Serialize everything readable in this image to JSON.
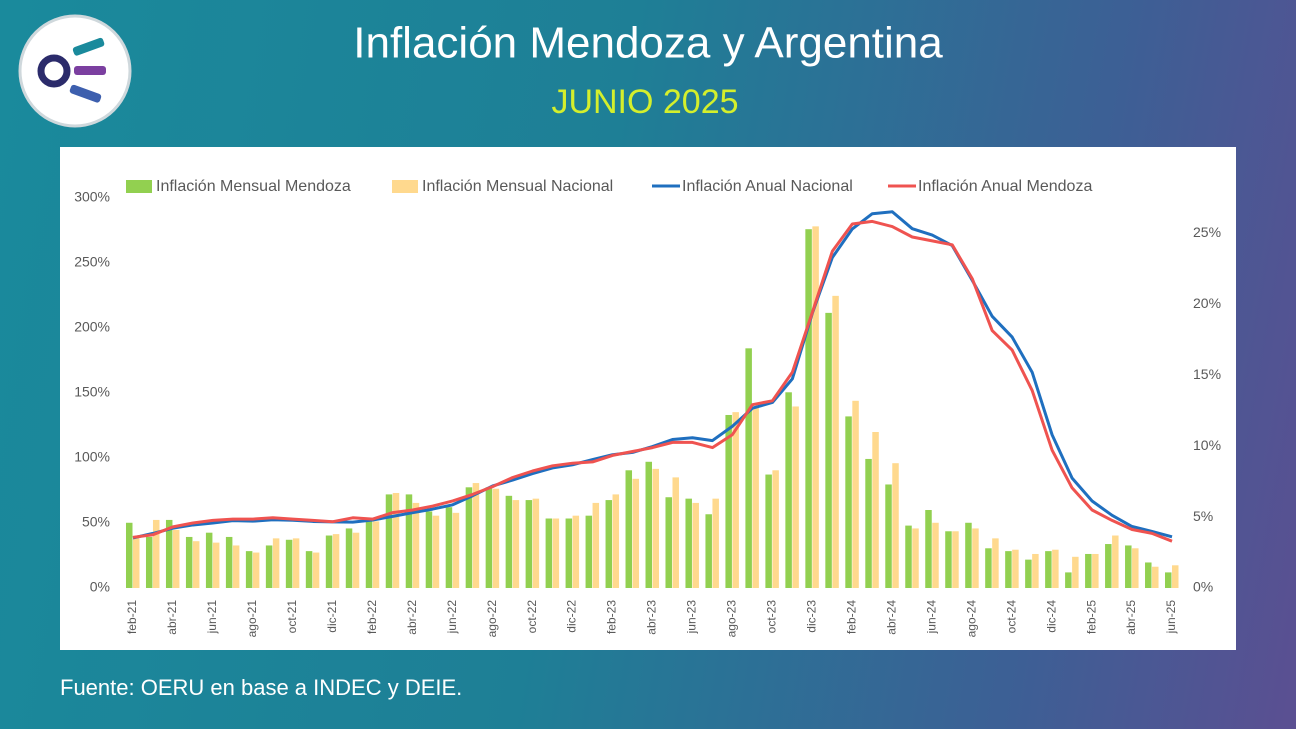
{
  "header": {
    "title": "Inflación Mendoza y Argentina",
    "subtitle": "JUNIO 2025"
  },
  "footer": {
    "source": "Fuente: OERU en base a INDEC y DEIE."
  },
  "chart_data": {
    "type": "bar-line",
    "categories": [
      "feb-21",
      null,
      "abr-21",
      null,
      "jun-21",
      null,
      "ago-21",
      null,
      "oct-21",
      null,
      "dic-21",
      null,
      "feb-22",
      null,
      "abr-22",
      null,
      "jun-22",
      null,
      "ago-22",
      null,
      "oct-22",
      null,
      "dic-22",
      null,
      "feb-23",
      null,
      "abr-23",
      null,
      "jun-23",
      null,
      "ago-23",
      null,
      "oct-23",
      null,
      "dic-23",
      null,
      "feb-24",
      null,
      "abr-24",
      null,
      "jun-24",
      null,
      "ago-24",
      null,
      "oct-24",
      null,
      "dic-24",
      null,
      "feb-25",
      null,
      "abr-25",
      null,
      "jun-25"
    ],
    "series": [
      {
        "name": "Inflación Mensual Mendoza",
        "kind": "bar",
        "axis": "y2",
        "color": "#92d050",
        "values": [
          4.6,
          3.6,
          4.8,
          3.6,
          3.9,
          3.6,
          2.6,
          3.0,
          3.4,
          2.6,
          3.7,
          4.2,
          4.7,
          6.6,
          6.6,
          5.4,
          5.7,
          7.1,
          7.1,
          6.5,
          6.2,
          4.9,
          4.9,
          5.1,
          6.2,
          8.3,
          8.9,
          6.4,
          6.3,
          5.2,
          12.2,
          16.9,
          8.0,
          13.8,
          25.3,
          19.4,
          12.1,
          9.1,
          7.3,
          4.4,
          5.5,
          4.0,
          4.6,
          2.8,
          2.6,
          2.0,
          2.6,
          1.1,
          2.4,
          3.1,
          3.0,
          1.8,
          1.1
        ]
      },
      {
        "name": "Inflación Mensual Nacional",
        "kind": "bar",
        "axis": "y2",
        "color": "#ffd98e",
        "values": [
          3.6,
          4.8,
          4.1,
          3.3,
          3.2,
          3.0,
          2.5,
          3.5,
          3.5,
          2.5,
          3.8,
          3.9,
          4.7,
          6.7,
          6.0,
          5.1,
          5.3,
          7.4,
          7.0,
          6.2,
          6.3,
          4.9,
          5.1,
          6.0,
          6.6,
          7.7,
          8.4,
          7.8,
          6.0,
          6.3,
          12.4,
          12.7,
          8.3,
          12.8,
          25.5,
          20.6,
          13.2,
          11.0,
          8.8,
          4.2,
          4.6,
          4.0,
          4.2,
          3.5,
          2.7,
          2.4,
          2.7,
          2.2,
          2.4,
          3.7,
          2.8,
          1.5,
          1.6
        ]
      },
      {
        "name": "Inflación Anual Nacional",
        "kind": "line",
        "axis": "y",
        "color": "#1f6fbf",
        "values": [
          38.5,
          42,
          46,
          48.5,
          50,
          51.8,
          51.4,
          52.5,
          52.1,
          51.2,
          50.9,
          50.7,
          52.3,
          55.1,
          58,
          60.7,
          64,
          71,
          78.5,
          83,
          88,
          92.4,
          94.8,
          98.8,
          102.5,
          104.3,
          108.8,
          114.2,
          115.6,
          113.4,
          124.4,
          138.3,
          142.7,
          160.9,
          211.4,
          254.2,
          276.2,
          287.9,
          289.4,
          276.4,
          271.5,
          263.4,
          236.7,
          209,
          193,
          166,
          117.8,
          84.5,
          66.9,
          55.9,
          47.3,
          43.5,
          39.4
        ]
      },
      {
        "name": "Inflación Anual Mendoza",
        "kind": "line",
        "axis": "y",
        "color": "#ef5350",
        "values": [
          39,
          41,
          47,
          50,
          52,
          53,
          53,
          54,
          53,
          52,
          51,
          54,
          53,
          58,
          60,
          63,
          67,
          72,
          78,
          85,
          90,
          94,
          96,
          97,
          102,
          105,
          108,
          112,
          112,
          108,
          118,
          141,
          144,
          166,
          212,
          259,
          280,
          282,
          278,
          270,
          267,
          264,
          238,
          198,
          183,
          152,
          106,
          77,
          60,
          52,
          45,
          42,
          36
        ]
      }
    ],
    "ylim": [
      0,
      300
    ],
    "yticks": [
      {
        "value": 0,
        "label": "0%"
      },
      {
        "value": 50,
        "label": "50%"
      },
      {
        "value": 100,
        "label": "100%"
      },
      {
        "value": 150,
        "label": "150%"
      },
      {
        "value": 200,
        "label": "200%"
      },
      {
        "value": 250,
        "label": "250%"
      },
      {
        "value": 300,
        "label": "300%"
      }
    ],
    "y2lim": [
      0,
      27.5
    ],
    "y2ticks": [
      {
        "value": 0,
        "label": "0%"
      },
      {
        "value": 5,
        "label": "5%"
      },
      {
        "value": 10,
        "label": "10%"
      },
      {
        "value": 15,
        "label": "15%"
      },
      {
        "value": 20,
        "label": "20%"
      },
      {
        "value": 25,
        "label": "25%"
      }
    ],
    "legend": "top"
  }
}
